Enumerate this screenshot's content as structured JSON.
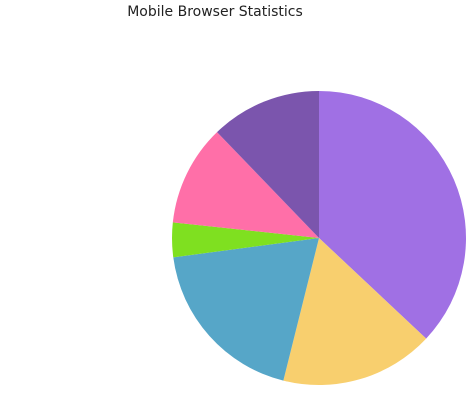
{
  "chart_data": {
    "type": "pie",
    "title": "Mobile Browser Statistics",
    "values": [
      37,
      16.9,
      19,
      3.8,
      11.1,
      12.2
    ],
    "colors": [
      "#a070e4",
      "#f8cf6e",
      "#56a6c8",
      "#7fe020",
      "#ff6fa8",
      "#7b55ad"
    ]
  }
}
